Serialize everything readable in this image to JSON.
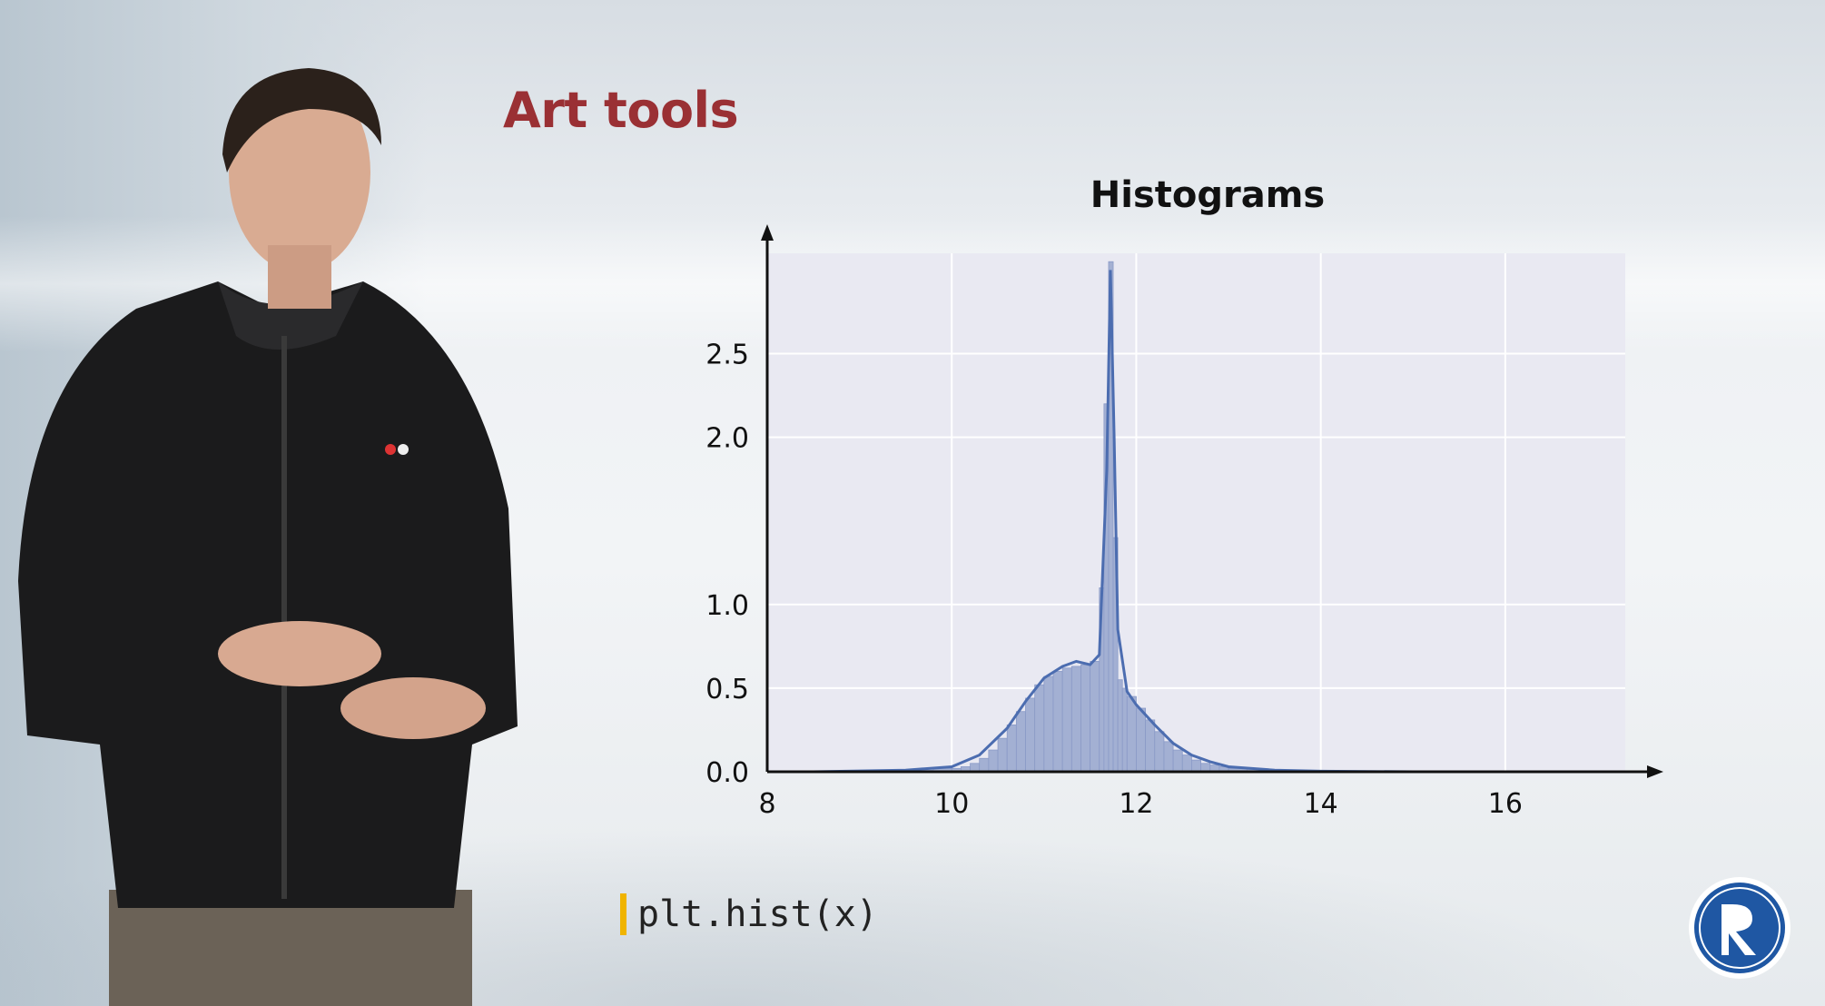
{
  "slide": {
    "title": "Art tools"
  },
  "code": {
    "text": "plt.hist(x)"
  },
  "chart_data": {
    "type": "bar",
    "title": "Histograms",
    "xlabel": "",
    "ylabel": "",
    "xlim": [
      8,
      17.3
    ],
    "ylim": [
      0,
      3.1
    ],
    "xticks": [
      8,
      10,
      12,
      14,
      16
    ],
    "xtick_labels": [
      "8",
      "10",
      "12",
      "14",
      "16"
    ],
    "yticks": [
      0.0,
      0.5,
      1.0,
      2.0,
      2.5
    ],
    "ytick_labels": [
      "0.0",
      "0.5",
      "1.0",
      "2.0",
      "2.5"
    ],
    "grid": true,
    "bin_edges": [
      8.5,
      8.8,
      9.0,
      9.2,
      9.4,
      9.6,
      9.8,
      10.0,
      10.1,
      10.2,
      10.3,
      10.4,
      10.5,
      10.6,
      10.7,
      10.8,
      10.9,
      11.0,
      11.1,
      11.2,
      11.3,
      11.4,
      11.5,
      11.6,
      11.65,
      11.7,
      11.75,
      11.8,
      11.85,
      11.9,
      12.0,
      12.1,
      12.2,
      12.3,
      12.4,
      12.5,
      12.6,
      12.7,
      12.8,
      12.9,
      13.0,
      13.2,
      13.4,
      13.6,
      13.8,
      14.0,
      14.5,
      15.0,
      16.0,
      17.1
    ],
    "values": [
      0.0,
      0.0,
      0.0,
      0.0,
      0.01,
      0.01,
      0.02,
      0.02,
      0.03,
      0.05,
      0.08,
      0.13,
      0.2,
      0.28,
      0.36,
      0.44,
      0.52,
      0.57,
      0.6,
      0.62,
      0.63,
      0.64,
      0.66,
      1.1,
      2.2,
      3.05,
      1.4,
      0.55,
      0.5,
      0.45,
      0.38,
      0.31,
      0.24,
      0.18,
      0.13,
      0.1,
      0.07,
      0.05,
      0.04,
      0.03,
      0.02,
      0.015,
      0.01,
      0.005,
      0.003,
      0.002,
      0.001,
      0.0,
      0.0
    ],
    "kde_x": [
      8.5,
      9.5,
      10.0,
      10.3,
      10.6,
      10.8,
      11.0,
      11.2,
      11.35,
      11.5,
      11.6,
      11.68,
      11.72,
      11.76,
      11.8,
      11.9,
      12.0,
      12.2,
      12.4,
      12.6,
      12.8,
      13.0,
      13.5,
      14.0,
      15.0,
      17.0
    ],
    "kde_y": [
      0.0,
      0.01,
      0.03,
      0.1,
      0.26,
      0.42,
      0.56,
      0.63,
      0.66,
      0.64,
      0.7,
      1.8,
      3.0,
      2.0,
      0.85,
      0.48,
      0.4,
      0.28,
      0.17,
      0.1,
      0.06,
      0.03,
      0.01,
      0.003,
      0.0,
      0.0
    ],
    "colors": {
      "plot_bg": "#e9e9f2",
      "bar": "#a3b0d3",
      "bar_edge": "#8a9ac7",
      "kde": "#4c6db0",
      "grid": "#ffffff",
      "axis": "#111111"
    }
  }
}
